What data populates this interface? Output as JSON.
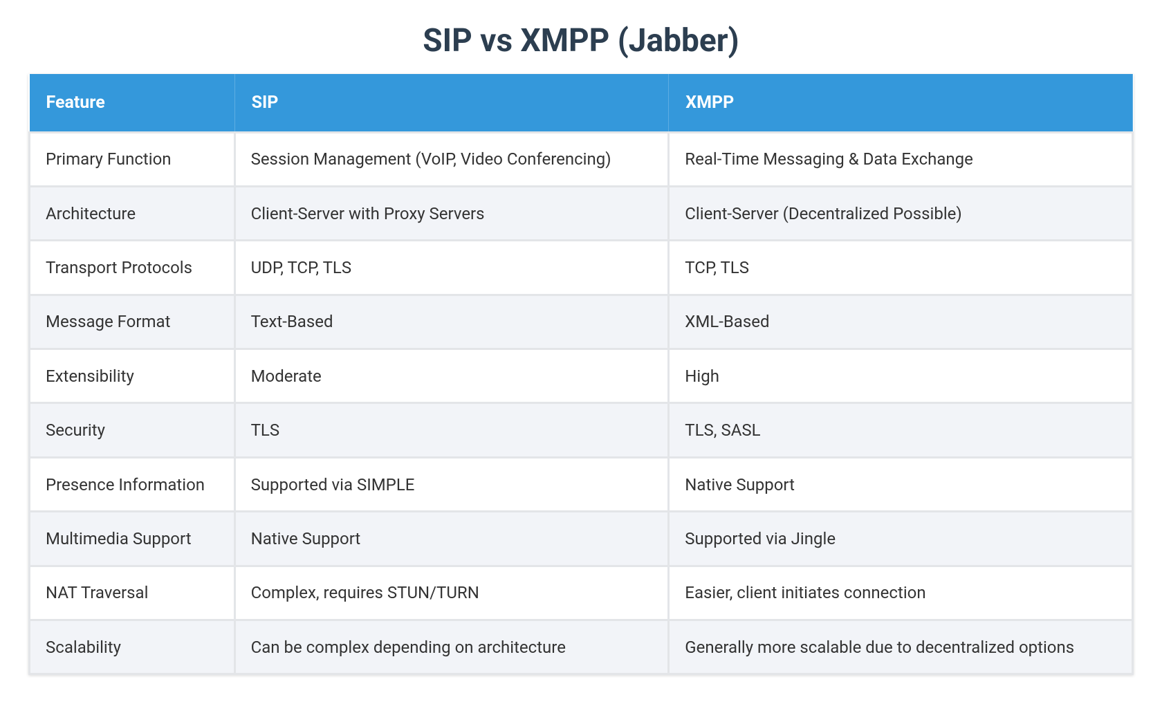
{
  "header": {
    "title": "SIP vs XMPP (Jabber)"
  },
  "table": {
    "columns": [
      "Feature",
      "SIP",
      "XMPP"
    ],
    "rows": [
      [
        "Primary Function",
        "Session Management (VoIP, Video Conferencing)",
        "Real-Time Messaging & Data Exchange"
      ],
      [
        "Architecture",
        "Client-Server with Proxy Servers",
        "Client-Server (Decentralized Possible)"
      ],
      [
        "Transport Protocols",
        "UDP, TCP, TLS",
        "TCP, TLS"
      ],
      [
        "Message Format",
        "Text-Based",
        "XML-Based"
      ],
      [
        "Extensibility",
        "Moderate",
        "High"
      ],
      [
        "Security",
        "TLS",
        "TLS, SASL"
      ],
      [
        "Presence Information",
        "Supported via SIMPLE",
        "Native Support"
      ],
      [
        "Multimedia Support",
        "Native Support",
        "Supported via Jingle"
      ],
      [
        "NAT Traversal",
        "Complex, requires STUN/TURN",
        "Easier, client initiates connection"
      ],
      [
        "Scalability",
        "Can be complex depending on architecture",
        "Generally more scalable due to decentralized options"
      ]
    ]
  }
}
